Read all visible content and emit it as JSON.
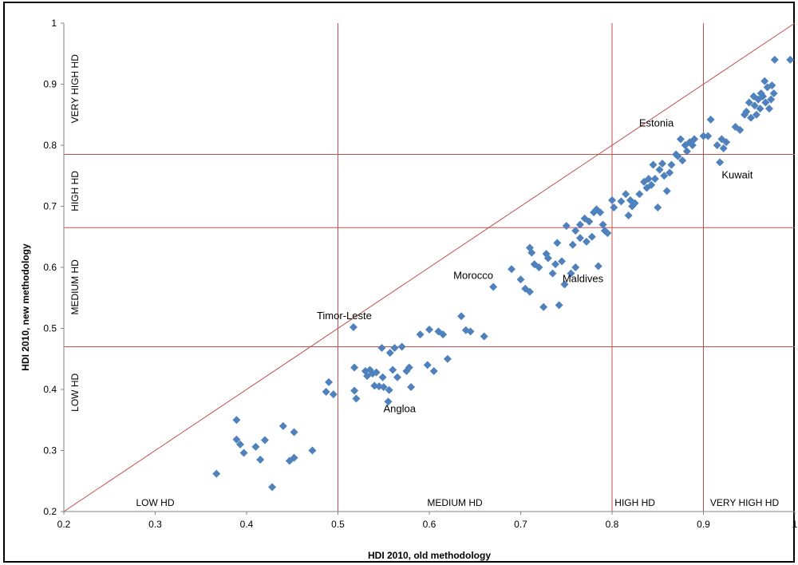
{
  "chart_data": {
    "type": "scatter",
    "title": "",
    "xlabel": "HDI 2010, old methodology",
    "ylabel": "HDI 2010, new methodology",
    "xlim": [
      0.2,
      1.0
    ],
    "ylim": [
      0.2,
      1.0
    ],
    "x_ticks": [
      "0.2",
      "0.3",
      "0.4",
      "0.5",
      "0.6",
      "0.7",
      "0.8",
      "0.9",
      "1"
    ],
    "y_ticks": [
      "0.2",
      "0.3",
      "0.4",
      "0.5",
      "0.6",
      "0.7",
      "0.8",
      "0.9",
      "1"
    ],
    "grid": false,
    "legend": "none",
    "colors": {
      "points": "#4f81bd",
      "reference_lines": "#c0504d",
      "frame": "#000000"
    },
    "reference_lines": {
      "diagonal": [
        [
          0.2,
          0.2
        ],
        [
          1.0,
          1.0
        ]
      ],
      "vertical_x": [
        0.5,
        0.8,
        0.9
      ],
      "horizontal_y": [
        0.47,
        0.665,
        0.785
      ]
    },
    "zone_labels_y": [
      "VERY HIGH HD",
      "HIGH HD",
      "MEDIUM HD",
      "LOW HD"
    ],
    "zone_labels_x": [
      "LOW HD",
      "MEDIUM HD",
      "HIGH HD",
      "VERY HIGH HD"
    ],
    "annotations": [
      {
        "text": "Timor-Leste",
        "x": 0.517,
        "y": 0.502
      },
      {
        "text": "Angloa",
        "x": 0.555,
        "y": 0.38
      },
      {
        "text": "Morocco",
        "x": 0.67,
        "y": 0.568
      },
      {
        "text": "Maldives",
        "x": 0.785,
        "y": 0.602
      },
      {
        "text": "Estonia",
        "x": 0.875,
        "y": 0.81
      },
      {
        "text": "Kuwait",
        "x": 0.92,
        "y": 0.772
      }
    ],
    "series": [
      {
        "points": [
          [
            0.367,
            0.262
          ],
          [
            0.389,
            0.35
          ],
          [
            0.389,
            0.318
          ],
          [
            0.393,
            0.31
          ],
          [
            0.397,
            0.296
          ],
          [
            0.41,
            0.306
          ],
          [
            0.415,
            0.285
          ],
          [
            0.42,
            0.317
          ],
          [
            0.428,
            0.24
          ],
          [
            0.44,
            0.34
          ],
          [
            0.447,
            0.283
          ],
          [
            0.452,
            0.288
          ],
          [
            0.452,
            0.33
          ],
          [
            0.472,
            0.3
          ],
          [
            0.487,
            0.396
          ],
          [
            0.49,
            0.412
          ],
          [
            0.495,
            0.392
          ],
          [
            0.517,
            0.502
          ],
          [
            0.518,
            0.436
          ],
          [
            0.518,
            0.398
          ],
          [
            0.52,
            0.385
          ],
          [
            0.53,
            0.43
          ],
          [
            0.532,
            0.422
          ],
          [
            0.535,
            0.432
          ],
          [
            0.538,
            0.426
          ],
          [
            0.54,
            0.406
          ],
          [
            0.542,
            0.428
          ],
          [
            0.545,
            0.405
          ],
          [
            0.548,
            0.468
          ],
          [
            0.549,
            0.42
          ],
          [
            0.55,
            0.404
          ],
          [
            0.555,
            0.38
          ],
          [
            0.556,
            0.399
          ],
          [
            0.557,
            0.46
          ],
          [
            0.56,
            0.432
          ],
          [
            0.562,
            0.468
          ],
          [
            0.565,
            0.42
          ],
          [
            0.57,
            0.47
          ],
          [
            0.575,
            0.43
          ],
          [
            0.578,
            0.436
          ],
          [
            0.58,
            0.404
          ],
          [
            0.59,
            0.49
          ],
          [
            0.598,
            0.44
          ],
          [
            0.6,
            0.498
          ],
          [
            0.605,
            0.43
          ],
          [
            0.61,
            0.495
          ],
          [
            0.615,
            0.49
          ],
          [
            0.62,
            0.45
          ],
          [
            0.635,
            0.52
          ],
          [
            0.64,
            0.497
          ],
          [
            0.645,
            0.495
          ],
          [
            0.66,
            0.487
          ],
          [
            0.67,
            0.568
          ],
          [
            0.69,
            0.597
          ],
          [
            0.7,
            0.58
          ],
          [
            0.705,
            0.565
          ],
          [
            0.71,
            0.56
          ],
          [
            0.71,
            0.632
          ],
          [
            0.712,
            0.624
          ],
          [
            0.715,
            0.605
          ],
          [
            0.72,
            0.6
          ],
          [
            0.725,
            0.535
          ],
          [
            0.728,
            0.622
          ],
          [
            0.73,
            0.615
          ],
          [
            0.735,
            0.59
          ],
          [
            0.738,
            0.605
          ],
          [
            0.74,
            0.64
          ],
          [
            0.742,
            0.538
          ],
          [
            0.745,
            0.61
          ],
          [
            0.748,
            0.572
          ],
          [
            0.75,
            0.668
          ],
          [
            0.755,
            0.59
          ],
          [
            0.757,
            0.637
          ],
          [
            0.76,
            0.6
          ],
          [
            0.76,
            0.66
          ],
          [
            0.765,
            0.67
          ],
          [
            0.765,
            0.648
          ],
          [
            0.77,
            0.68
          ],
          [
            0.772,
            0.642
          ],
          [
            0.775,
            0.675
          ],
          [
            0.778,
            0.65
          ],
          [
            0.78,
            0.69
          ],
          [
            0.783,
            0.695
          ],
          [
            0.785,
            0.602
          ],
          [
            0.787,
            0.69
          ],
          [
            0.79,
            0.67
          ],
          [
            0.792,
            0.66
          ],
          [
            0.795,
            0.656
          ],
          [
            0.8,
            0.71
          ],
          [
            0.802,
            0.698
          ],
          [
            0.81,
            0.708
          ],
          [
            0.815,
            0.72
          ],
          [
            0.818,
            0.685
          ],
          [
            0.82,
            0.71
          ],
          [
            0.822,
            0.7
          ],
          [
            0.825,
            0.705
          ],
          [
            0.83,
            0.72
          ],
          [
            0.835,
            0.74
          ],
          [
            0.838,
            0.73
          ],
          [
            0.84,
            0.745
          ],
          [
            0.843,
            0.735
          ],
          [
            0.845,
            0.768
          ],
          [
            0.847,
            0.745
          ],
          [
            0.85,
            0.698
          ],
          [
            0.852,
            0.76
          ],
          [
            0.855,
            0.77
          ],
          [
            0.857,
            0.75
          ],
          [
            0.86,
            0.725
          ],
          [
            0.863,
            0.755
          ],
          [
            0.865,
            0.768
          ],
          [
            0.87,
            0.785
          ],
          [
            0.872,
            0.782
          ],
          [
            0.875,
            0.81
          ],
          [
            0.877,
            0.775
          ],
          [
            0.88,
            0.8
          ],
          [
            0.882,
            0.79
          ],
          [
            0.885,
            0.805
          ],
          [
            0.888,
            0.8
          ],
          [
            0.89,
            0.81
          ],
          [
            0.9,
            0.815
          ],
          [
            0.905,
            0.815
          ],
          [
            0.908,
            0.842
          ],
          [
            0.915,
            0.8
          ],
          [
            0.918,
            0.772
          ],
          [
            0.92,
            0.81
          ],
          [
            0.922,
            0.795
          ],
          [
            0.925,
            0.805
          ],
          [
            0.935,
            0.83
          ],
          [
            0.94,
            0.825
          ],
          [
            0.945,
            0.85
          ],
          [
            0.947,
            0.855
          ],
          [
            0.95,
            0.87
          ],
          [
            0.952,
            0.845
          ],
          [
            0.955,
            0.88
          ],
          [
            0.956,
            0.865
          ],
          [
            0.958,
            0.85
          ],
          [
            0.96,
            0.875
          ],
          [
            0.962,
            0.86
          ],
          [
            0.963,
            0.885
          ],
          [
            0.965,
            0.88
          ],
          [
            0.967,
            0.905
          ],
          [
            0.968,
            0.87
          ],
          [
            0.97,
            0.895
          ],
          [
            0.972,
            0.86
          ],
          [
            0.974,
            0.875
          ],
          [
            0.975,
            0.898
          ],
          [
            0.977,
            0.885
          ],
          [
            0.978,
            0.94
          ],
          [
            0.995,
            0.94
          ]
        ]
      }
    ]
  }
}
